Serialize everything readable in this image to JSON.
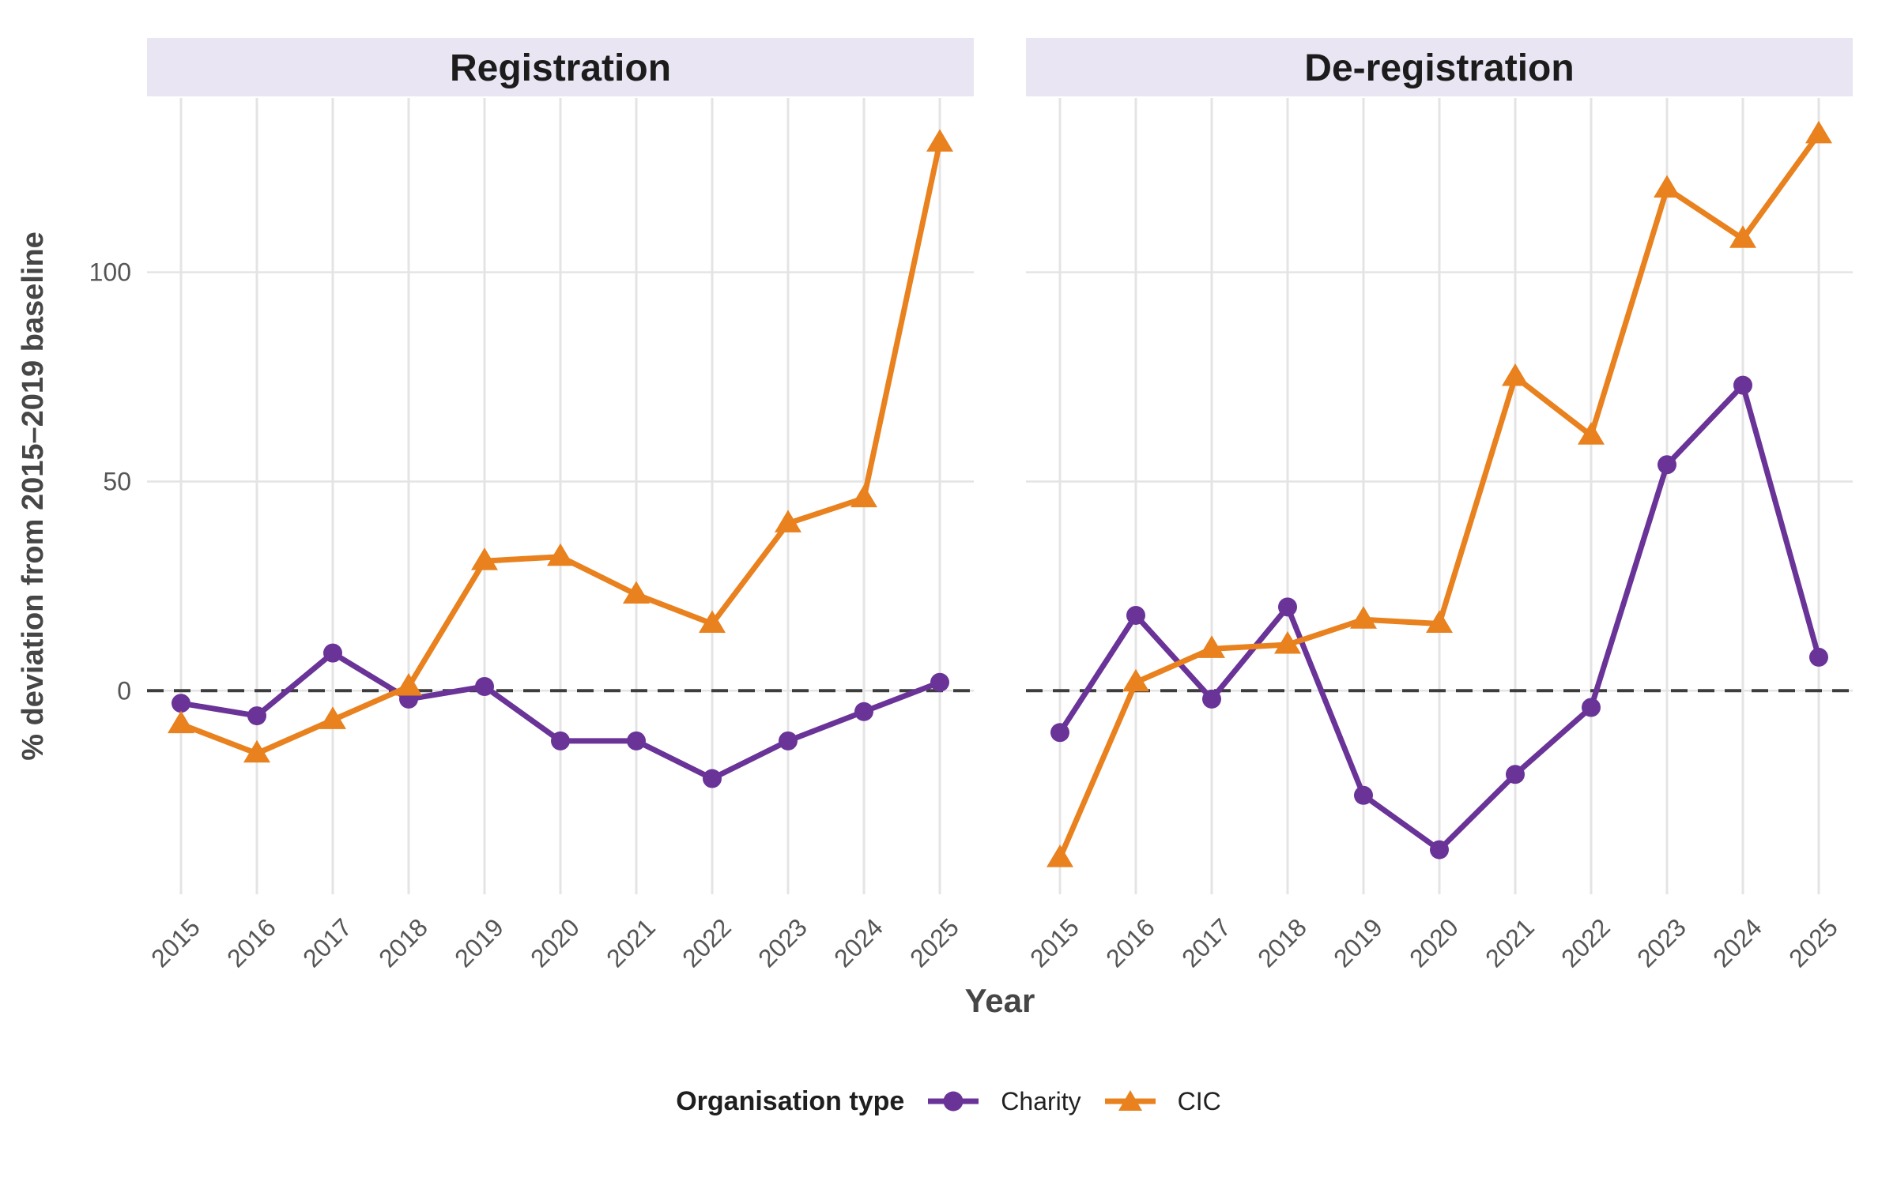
{
  "chart_data": {
    "type": "line",
    "x": [
      2015,
      2016,
      2017,
      2018,
      2019,
      2020,
      2021,
      2022,
      2023,
      2024,
      2025
    ],
    "xlabel": "Year",
    "ylabel": "% deviation from 2015–2019 baseline",
    "ylim": [
      -48.65,
      141.65
    ],
    "yticks": [
      0,
      50,
      100
    ],
    "zero_reference_line": 0,
    "grid": true,
    "legend_position": "bottom",
    "legend_title": "Organisation type",
    "panels": [
      {
        "title": "Registration",
        "series": [
          {
            "name": "Charity",
            "marker": "circle",
            "color": "#6a3398",
            "values": [
              -3,
              -6,
              9,
              -2,
              1,
              -12,
              -12,
              -21,
              -12,
              -5,
              2
            ]
          },
          {
            "name": "CIC",
            "marker": "triangle",
            "color": "#e8811e",
            "values": [
              -8,
              -15,
              -7,
              1,
              31,
              32,
              23,
              16,
              40,
              46,
              131
            ]
          }
        ]
      },
      {
        "title": "De-registration",
        "series": [
          {
            "name": "Charity",
            "marker": "circle",
            "color": "#6a3398",
            "values": [
              -10,
              18,
              -2,
              20,
              -25,
              -38,
              -20,
              -4,
              54,
              73,
              8
            ]
          },
          {
            "name": "CIC",
            "marker": "triangle",
            "color": "#e8811e",
            "values": [
              -40,
              2,
              10,
              11,
              17,
              16,
              75,
              61,
              120,
              108,
              133
            ]
          }
        ]
      }
    ]
  },
  "colors": {
    "background": "#ffffff",
    "strip_background": "#eae5f2",
    "strip_text": "#1c1c1c",
    "gridline": "#e4e4e4",
    "zero_line": "#3d3d3d",
    "tick_text": "#555555",
    "axis_title_text": "#464646",
    "legend_text": "#1f1f1f",
    "charity": "#6a3398",
    "cic": "#e8811e"
  }
}
